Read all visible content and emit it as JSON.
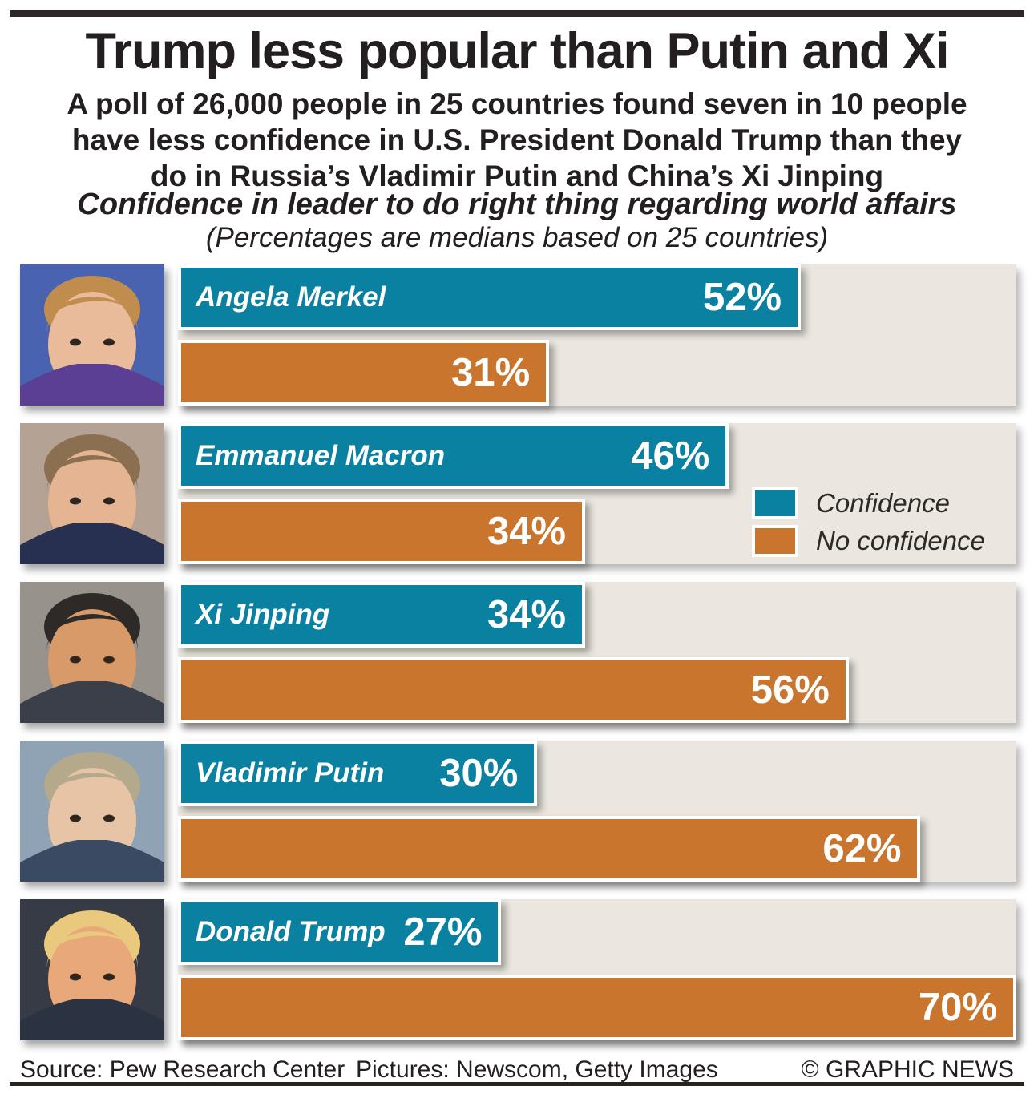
{
  "header": {
    "title": "Trump less popular than Putin and Xi",
    "subtitle_lines": [
      "A poll of 26,000 people in 25 countries found seven in 10 people",
      "have less confidence in U.S. President Donald Trump than they",
      "do in Russia’s Vladimir Putin and China’s Xi Jinping"
    ],
    "chart_heading": "Confidence in leader to do right thing regarding world affairs",
    "chart_subheading": "(Percentages are medians based on 25 countries)"
  },
  "legend": {
    "confidence_label": "Confidence",
    "no_confidence_label": "No confidence"
  },
  "footer": {
    "source": "Source: Pew Research Center",
    "pictures": "Pictures: Newscom, Getty Images",
    "credit": "© GRAPHIC NEWS"
  },
  "colors": {
    "confidence": "#0b81a2",
    "no_confidence": "#c9752e",
    "panel_background": "#ebe7e0",
    "rule": "#2b2726",
    "text": "#231f20"
  },
  "chart_data": {
    "type": "bar",
    "orientation": "horizontal",
    "unit": "%",
    "axis_max": 70,
    "grid": false,
    "legend_position": "right of Emmanuel Macron row",
    "title": "Confidence in leader to do right thing regarding world affairs",
    "note": "(Percentages are medians based on 25 countries)",
    "categories": [
      "Angela Merkel",
      "Emmanuel Macron",
      "Xi Jinping",
      "Vladimir Putin",
      "Donald Trump"
    ],
    "series": [
      {
        "name": "Confidence",
        "color": "#0b81a2",
        "values": [
          52,
          46,
          34,
          30,
          27
        ]
      },
      {
        "name": "No confidence",
        "color": "#c9752e",
        "values": [
          31,
          34,
          56,
          62,
          70
        ]
      }
    ]
  },
  "portraits": [
    {
      "leader": "Angela Merkel",
      "background": "#4a63b0",
      "skin": "#e9bb9b",
      "hair": "#c08d4f",
      "suit": "#5a3f94"
    },
    {
      "leader": "Emmanuel Macron",
      "background": "#b4a395",
      "skin": "#e5b493",
      "hair": "#8a6f50",
      "suit": "#273050"
    },
    {
      "leader": "Xi Jinping",
      "background": "#97928b",
      "skin": "#d99a6a",
      "hair": "#2e2a28",
      "suit": "#3a3f4a"
    },
    {
      "leader": "Vladimir Putin",
      "background": "#8fa3b5",
      "skin": "#e7c4a6",
      "hair": "#b5a98c",
      "suit": "#3a4a63"
    },
    {
      "leader": "Donald Trump",
      "background": "#363b46",
      "skin": "#e8a87a",
      "hair": "#e9c97e",
      "suit": "#2b3242"
    }
  ]
}
